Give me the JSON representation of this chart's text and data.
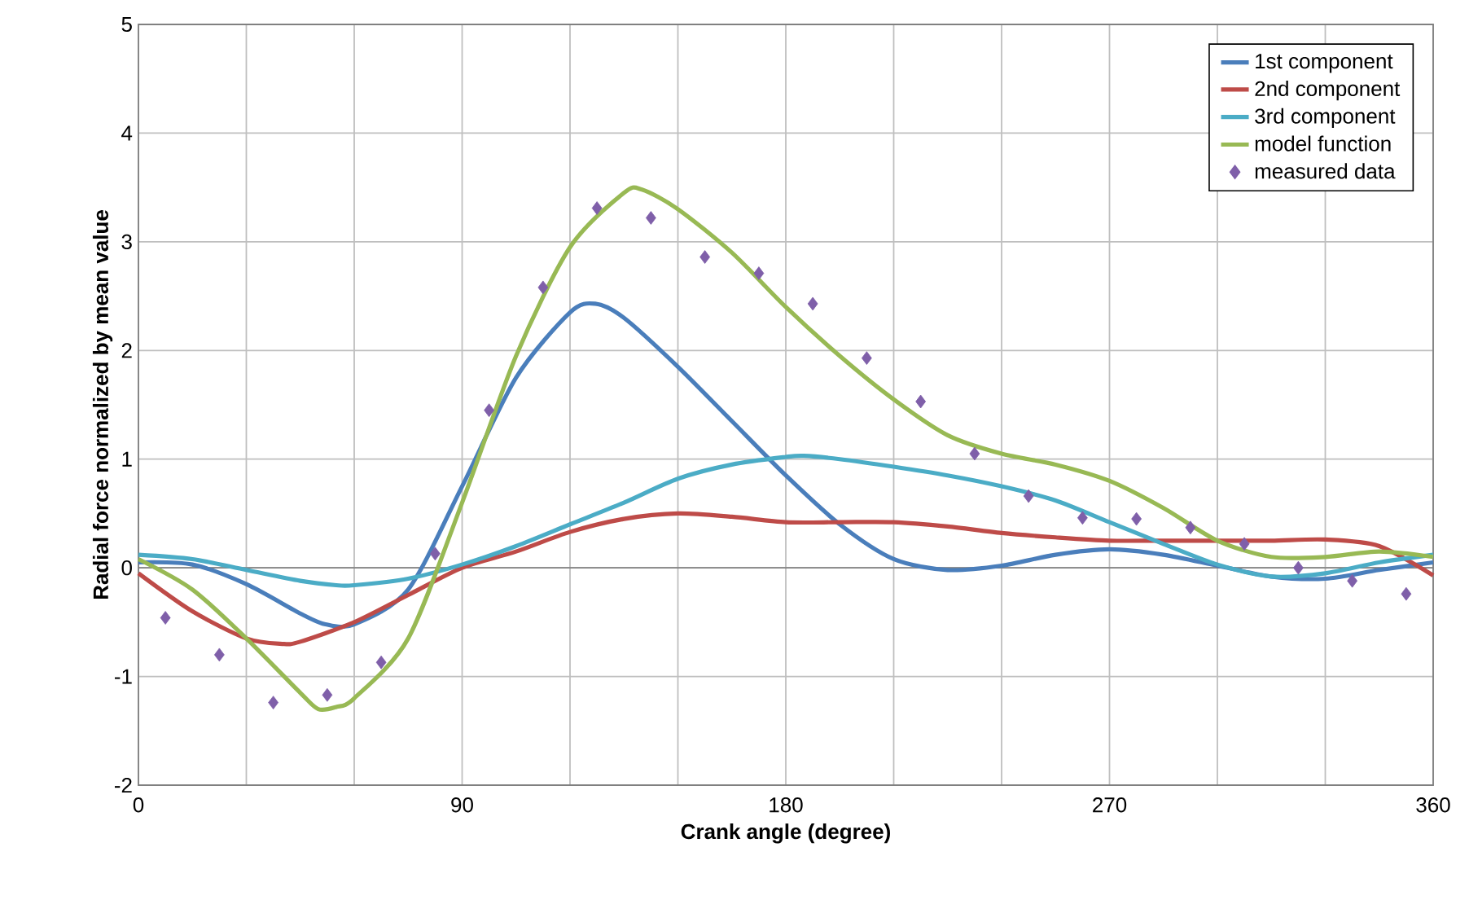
{
  "chart_data": {
    "type": "line",
    "xlabel": "Crank angle (degree)",
    "ylabel": "Radial force normalized by mean value",
    "xlim": [
      0,
      360
    ],
    "ylim": [
      -2,
      5
    ],
    "xticks": [
      0,
      {
        "value": 30,
        "label": null
      },
      {
        "value": 60,
        "label": null
      },
      90,
      {
        "value": 120,
        "label": null
      },
      {
        "value": 150,
        "label": null
      },
      180,
      {
        "value": 210,
        "label": null
      },
      {
        "value": 240,
        "label": null
      },
      270,
      {
        "value": 300,
        "label": null
      },
      {
        "value": 330,
        "label": null
      },
      360
    ],
    "yticks": [
      -2,
      -1,
      0,
      1,
      2,
      3,
      4,
      5
    ],
    "grid": true,
    "legend": "top right",
    "marker": "none",
    "line_style": "solid",
    "series": [
      {
        "name": "1st component",
        "color": "#4a7ebb",
        "x": [
          0,
          15,
          30,
          45,
          52,
          60,
          75,
          90,
          105,
          120,
          127,
          135,
          150,
          165,
          180,
          195,
          210,
          225,
          240,
          255,
          270,
          285,
          300,
          315,
          330,
          345,
          360
        ],
        "values": [
          0.05,
          0.03,
          -0.15,
          -0.42,
          -0.52,
          -0.52,
          -0.2,
          0.75,
          1.75,
          2.35,
          2.43,
          2.3,
          1.85,
          1.35,
          0.85,
          0.4,
          0.08,
          -0.02,
          0.02,
          0.12,
          0.17,
          0.12,
          0.02,
          -0.08,
          -0.1,
          -0.02,
          0.05
        ]
      },
      {
        "name": "2nd component",
        "color": "#be4b48",
        "x": [
          0,
          15,
          30,
          40,
          45,
          60,
          75,
          90,
          105,
          120,
          135,
          150,
          165,
          180,
          195,
          210,
          225,
          240,
          255,
          270,
          285,
          300,
          315,
          330,
          345,
          360
        ],
        "values": [
          -0.05,
          -0.4,
          -0.65,
          -0.7,
          -0.68,
          -0.5,
          -0.25,
          0.0,
          0.15,
          0.33,
          0.45,
          0.5,
          0.47,
          0.42,
          0.42,
          0.42,
          0.38,
          0.32,
          0.28,
          0.25,
          0.25,
          0.25,
          0.25,
          0.26,
          0.2,
          -0.07
        ]
      },
      {
        "name": "3rd component",
        "color": "#4bacc6",
        "x": [
          0,
          15,
          30,
          45,
          55,
          60,
          75,
          90,
          105,
          120,
          135,
          150,
          165,
          180,
          185,
          195,
          210,
          225,
          240,
          255,
          270,
          285,
          300,
          315,
          330,
          345,
          360
        ],
        "values": [
          0.12,
          0.08,
          -0.02,
          -0.12,
          -0.16,
          -0.16,
          -0.1,
          0.03,
          0.2,
          0.4,
          0.6,
          0.82,
          0.95,
          1.02,
          1.03,
          1.0,
          0.93,
          0.85,
          0.75,
          0.62,
          0.42,
          0.22,
          0.03,
          -0.08,
          -0.05,
          0.05,
          0.12
        ]
      },
      {
        "name": "model function",
        "color": "#98b954",
        "x": [
          0,
          15,
          30,
          45,
          50,
          55,
          60,
          75,
          90,
          105,
          120,
          135,
          140,
          150,
          165,
          180,
          195,
          210,
          225,
          240,
          255,
          270,
          285,
          300,
          315,
          330,
          345,
          360
        ],
        "values": [
          0.08,
          -0.2,
          -0.65,
          -1.15,
          -1.3,
          -1.28,
          -1.2,
          -0.65,
          0.6,
          1.95,
          2.95,
          3.45,
          3.48,
          3.3,
          2.9,
          2.4,
          1.95,
          1.55,
          1.22,
          1.05,
          0.95,
          0.8,
          0.55,
          0.25,
          0.1,
          0.1,
          0.15,
          0.1
        ]
      },
      {
        "name": "measured data",
        "type": "scatter",
        "marker": "diamond",
        "color": "#7f5fa9",
        "x": [
          7.5,
          22.5,
          37.5,
          52.5,
          67.5,
          82.5,
          97.5,
          112.5,
          127.5,
          142.5,
          157.5,
          172.5,
          187.5,
          202.5,
          217.5,
          232.5,
          247.5,
          262.5,
          277.5,
          292.5,
          307.5,
          322.5,
          337.5,
          352.5
        ],
        "values": [
          -0.46,
          -0.8,
          -1.24,
          -1.17,
          -0.87,
          0.13,
          1.45,
          2.58,
          3.31,
          3.22,
          2.86,
          2.71,
          2.43,
          1.93,
          1.53,
          1.05,
          0.66,
          0.46,
          0.45,
          0.37,
          0.22,
          0.0,
          -0.12,
          -0.24
        ]
      }
    ]
  }
}
